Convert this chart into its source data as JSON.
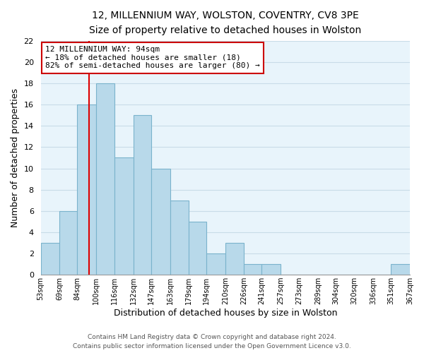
{
  "title": "12, MILLENNIUM WAY, WOLSTON, COVENTRY, CV8 3PE",
  "subtitle": "Size of property relative to detached houses in Wolston",
  "xlabel": "Distribution of detached houses by size in Wolston",
  "ylabel": "Number of detached properties",
  "bin_edges": [
    53,
    69,
    84,
    100,
    116,
    132,
    147,
    163,
    179,
    194,
    210,
    226,
    241,
    257,
    273,
    289,
    304,
    320,
    336,
    351,
    367
  ],
  "bin_labels": [
    "53sqm",
    "69sqm",
    "84sqm",
    "100sqm",
    "116sqm",
    "132sqm",
    "147sqm",
    "163sqm",
    "179sqm",
    "194sqm",
    "210sqm",
    "226sqm",
    "241sqm",
    "257sqm",
    "273sqm",
    "289sqm",
    "304sqm",
    "320sqm",
    "336sqm",
    "351sqm",
    "367sqm"
  ],
  "counts": [
    3,
    6,
    16,
    18,
    11,
    15,
    10,
    7,
    5,
    2,
    3,
    1,
    1,
    0,
    0,
    0,
    0,
    0,
    0,
    1
  ],
  "bar_color": "#b8d9ea",
  "bar_edge_color": "#7ab3cc",
  "grid_color": "#c8dce8",
  "vline_color": "#dd0000",
  "vline_x": 94,
  "annotation_text_line1": "12 MILLENNIUM WAY: 94sqm",
  "annotation_text_line2": "← 18% of detached houses are smaller (18)",
  "annotation_text_line3": "82% of semi-detached houses are larger (80) →",
  "annotation_box_color": "#ffffff",
  "annotation_box_edge": "#cc0000",
  "ylim": [
    0,
    22
  ],
  "yticks": [
    0,
    2,
    4,
    6,
    8,
    10,
    12,
    14,
    16,
    18,
    20,
    22
  ],
  "footer_line1": "Contains HM Land Registry data © Crown copyright and database right 2024.",
  "footer_line2": "Contains public sector information licensed under the Open Government Licence v3.0.",
  "bg_color": "#ffffff",
  "plot_bg_color": "#e8f4fb"
}
